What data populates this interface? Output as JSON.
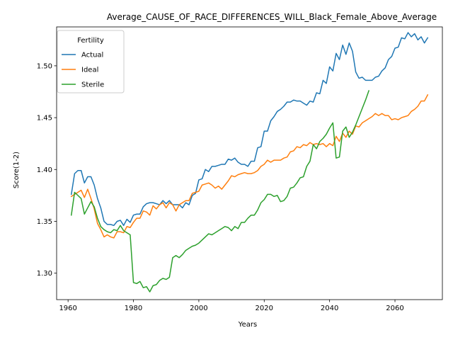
{
  "chart_data": {
    "type": "line",
    "title": "Average_CAUSE_OF_RACE_DIFFERENCES_WILL_Black_Female_Above_Average",
    "xlabel": "Years",
    "ylabel": "Score(1-2)",
    "xlim": [
      1956.5,
      2074.5
    ],
    "ylim": [
      1.2745,
      1.5375
    ],
    "xticks": [
      1960,
      1980,
      2000,
      2020,
      2040,
      2060
    ],
    "yticks": [
      1.3,
      1.35,
      1.4,
      1.45,
      1.5
    ],
    "ytick_labels": [
      "1.30",
      "1.35",
      "1.40",
      "1.45",
      "1.50"
    ],
    "grid": false,
    "legend": {
      "title": "Fertility",
      "position": "top-left"
    },
    "series": [
      {
        "name": "Actual",
        "color": "#1f77b4",
        "x": [
          1961,
          1962,
          1963,
          1964,
          1965,
          1966,
          1967,
          1968,
          1969,
          1970,
          1971,
          1972,
          1973,
          1974,
          1975,
          1976,
          1977,
          1978,
          1979,
          1980,
          1981,
          1982,
          1983,
          1984,
          1985,
          1986,
          1987,
          1988,
          1989,
          1990,
          1991,
          1992,
          1993,
          1994,
          1995,
          1996,
          1997,
          1998,
          1999,
          2000,
          2001,
          2002,
          2003,
          2004,
          2005,
          2006,
          2007,
          2008,
          2009,
          2010,
          2011,
          2012,
          2013,
          2014,
          2015,
          2016,
          2017,
          2018,
          2019,
          2020,
          2021,
          2022,
          2023,
          2024,
          2025,
          2026,
          2027,
          2028,
          2029,
          2030,
          2031,
          2032,
          2033,
          2034,
          2035,
          2036,
          2037,
          2038,
          2039,
          2040,
          2041,
          2042,
          2043,
          2044,
          2045,
          2046,
          2047,
          2048,
          2049,
          2050,
          2051,
          2052,
          2053,
          2054,
          2055,
          2056,
          2057,
          2058,
          2059,
          2060,
          2061,
          2062,
          2063,
          2064,
          2065,
          2066,
          2067,
          2068,
          2069,
          2070
        ],
        "values": [
          1.376,
          1.396,
          1.399,
          1.399,
          1.387,
          1.393,
          1.393,
          1.385,
          1.372,
          1.363,
          1.35,
          1.347,
          1.347,
          1.346,
          1.35,
          1.351,
          1.346,
          1.352,
          1.349,
          1.356,
          1.357,
          1.357,
          1.364,
          1.367,
          1.368,
          1.368,
          1.367,
          1.366,
          1.37,
          1.367,
          1.37,
          1.366,
          1.366,
          1.366,
          1.363,
          1.368,
          1.366,
          1.375,
          1.377,
          1.39,
          1.391,
          1.4,
          1.398,
          1.403,
          1.403,
          1.404,
          1.405,
          1.405,
          1.41,
          1.409,
          1.411,
          1.407,
          1.405,
          1.405,
          1.403,
          1.408,
          1.408,
          1.421,
          1.422,
          1.437,
          1.437,
          1.447,
          1.451,
          1.456,
          1.458,
          1.461,
          1.465,
          1.465,
          1.467,
          1.466,
          1.466,
          1.464,
          1.462,
          1.466,
          1.465,
          1.474,
          1.473,
          1.486,
          1.483,
          1.499,
          1.495,
          1.512,
          1.506,
          1.52,
          1.511,
          1.522,
          1.514,
          1.494,
          1.488,
          1.489,
          1.486,
          1.486,
          1.486,
          1.489,
          1.49,
          1.495,
          1.498,
          1.506,
          1.509,
          1.517,
          1.518,
          1.527,
          1.526,
          1.532,
          1.528,
          1.531,
          1.525,
          1.528,
          1.522,
          1.527
        ]
      },
      {
        "name": "Ideal",
        "color": "#ff7f0e",
        "x": [
          1961,
          1962,
          1963,
          1964,
          1965,
          1966,
          1967,
          1968,
          1969,
          1970,
          1971,
          1972,
          1973,
          1974,
          1975,
          1976,
          1977,
          1978,
          1979,
          1980,
          1981,
          1982,
          1983,
          1984,
          1985,
          1986,
          1987,
          1988,
          1989,
          1990,
          1991,
          1992,
          1993,
          1994,
          1995,
          1996,
          1997,
          1998,
          1999,
          2000,
          2001,
          2002,
          2003,
          2004,
          2005,
          2006,
          2007,
          2008,
          2009,
          2010,
          2011,
          2012,
          2013,
          2014,
          2015,
          2016,
          2017,
          2018,
          2019,
          2020,
          2021,
          2022,
          2023,
          2024,
          2025,
          2026,
          2027,
          2028,
          2029,
          2030,
          2031,
          2032,
          2033,
          2034,
          2035,
          2036,
          2037,
          2038,
          2039,
          2040,
          2041,
          2042,
          2043,
          2044,
          2045,
          2046,
          2047,
          2048,
          2049,
          2050,
          2051,
          2052,
          2053,
          2054,
          2055,
          2056,
          2057,
          2058,
          2059,
          2060,
          2061,
          2062,
          2063,
          2064,
          2065,
          2066,
          2067,
          2068,
          2069,
          2070
        ],
        "values": [
          1.374,
          1.376,
          1.378,
          1.38,
          1.373,
          1.381,
          1.372,
          1.362,
          1.348,
          1.342,
          1.335,
          1.337,
          1.335,
          1.334,
          1.34,
          1.34,
          1.339,
          1.345,
          1.344,
          1.349,
          1.353,
          1.353,
          1.36,
          1.359,
          1.356,
          1.365,
          1.362,
          1.366,
          1.368,
          1.363,
          1.368,
          1.366,
          1.36,
          1.366,
          1.368,
          1.37,
          1.37,
          1.377,
          1.378,
          1.379,
          1.385,
          1.386,
          1.387,
          1.385,
          1.382,
          1.384,
          1.381,
          1.385,
          1.389,
          1.394,
          1.393,
          1.395,
          1.396,
          1.397,
          1.396,
          1.396,
          1.397,
          1.399,
          1.403,
          1.405,
          1.409,
          1.407,
          1.409,
          1.409,
          1.409,
          1.411,
          1.412,
          1.417,
          1.418,
          1.422,
          1.421,
          1.424,
          1.423,
          1.426,
          1.424,
          1.425,
          1.424,
          1.425,
          1.422,
          1.425,
          1.423,
          1.432,
          1.427,
          1.435,
          1.431,
          1.437,
          1.434,
          1.442,
          1.441,
          1.445,
          1.447,
          1.449,
          1.451,
          1.454,
          1.452,
          1.454,
          1.452,
          1.452,
          1.448,
          1.449,
          1.448,
          1.45,
          1.451,
          1.452,
          1.456,
          1.458,
          1.461,
          1.466,
          1.466,
          1.472
        ]
      },
      {
        "name": "Sterile",
        "color": "#2ca02c",
        "x": [
          1961,
          1962,
          1963,
          1964,
          1965,
          1966,
          1967,
          1968,
          1969,
          1970,
          1971,
          1972,
          1973,
          1974,
          1975,
          1976,
          1977,
          1978,
          1979,
          1980,
          1981,
          1982,
          1983,
          1984,
          1985,
          1986,
          1987,
          1988,
          1989,
          1990,
          1991,
          1992,
          1993,
          1994,
          1995,
          1996,
          1997,
          1998,
          1999,
          2000,
          2001,
          2002,
          2003,
          2004,
          2005,
          2006,
          2007,
          2008,
          2009,
          2010,
          2011,
          2012,
          2013,
          2014,
          2015,
          2016,
          2017,
          2018,
          2019,
          2020,
          2021,
          2022,
          2023,
          2024,
          2025,
          2026,
          2027,
          2028,
          2029,
          2030,
          2031,
          2032,
          2033,
          2034,
          2035,
          2036,
          2037,
          2038,
          2039,
          2040,
          2041,
          2042,
          2043,
          2044,
          2045,
          2046,
          2047,
          2048,
          2049,
          2050,
          2051,
          2052
        ],
        "values": [
          1.356,
          1.378,
          1.375,
          1.372,
          1.357,
          1.363,
          1.369,
          1.364,
          1.353,
          1.345,
          1.342,
          1.34,
          1.339,
          1.342,
          1.341,
          1.346,
          1.341,
          1.339,
          1.337,
          1.291,
          1.29,
          1.292,
          1.286,
          1.287,
          1.282,
          1.288,
          1.289,
          1.293,
          1.295,
          1.294,
          1.296,
          1.315,
          1.317,
          1.315,
          1.318,
          1.322,
          1.324,
          1.326,
          1.327,
          1.329,
          1.332,
          1.335,
          1.338,
          1.337,
          1.339,
          1.341,
          1.343,
          1.345,
          1.344,
          1.341,
          1.345,
          1.343,
          1.349,
          1.349,
          1.353,
          1.356,
          1.356,
          1.361,
          1.368,
          1.371,
          1.376,
          1.376,
          1.374,
          1.375,
          1.369,
          1.37,
          1.374,
          1.382,
          1.383,
          1.387,
          1.392,
          1.393,
          1.403,
          1.408,
          1.424,
          1.42,
          1.427,
          1.43,
          1.434,
          1.44,
          1.445,
          1.411,
          1.412,
          1.437,
          1.441,
          1.431,
          1.436,
          1.443,
          1.451,
          1.459,
          1.467,
          1.476
        ]
      }
    ]
  }
}
